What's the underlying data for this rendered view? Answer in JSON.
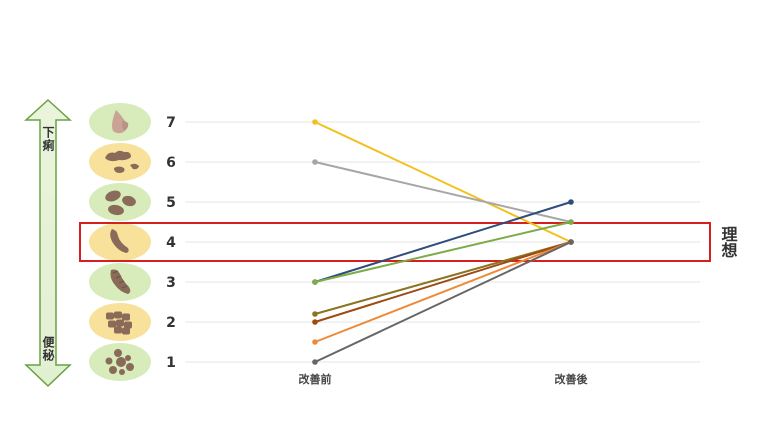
{
  "chart_data": {
    "type": "line",
    "categories": [
      "改善前",
      "改善後"
    ],
    "ylim": [
      1,
      7
    ],
    "y_ticks": [
      "1",
      "2",
      "3",
      "4",
      "5",
      "6",
      "7"
    ],
    "grid": "horizontal",
    "series": [
      {
        "values": [
          7,
          4
        ],
        "color": "#f2c11d"
      },
      {
        "values": [
          6,
          4.5
        ],
        "color": "#a6a6a6"
      },
      {
        "values": [
          3,
          5
        ],
        "color": "#2e4d7b"
      },
      {
        "values": [
          3,
          4.5
        ],
        "color": "#7cac48"
      },
      {
        "values": [
          2.2,
          4
        ],
        "color": "#8a7420"
      },
      {
        "values": [
          2,
          4
        ],
        "color": "#9e4a12"
      },
      {
        "values": [
          1.5,
          4
        ],
        "color": "#ed8a3a"
      },
      {
        "values": [
          1,
          4
        ],
        "color": "#666666"
      }
    ],
    "ideal_band": {
      "value": 4,
      "label": "理想",
      "color": "#d62020"
    },
    "scale_arrow": {
      "top_label": "下痢",
      "bottom_label": "便秘"
    },
    "stool_icons": [
      {
        "level": 7,
        "name": "watery-stool-icon",
        "bg": "#d7ebbb"
      },
      {
        "level": 6,
        "name": "mushy-stool-icon",
        "bg": "#f8e19a"
      },
      {
        "level": 5,
        "name": "soft-blobs-stool-icon",
        "bg": "#d7ebbb"
      },
      {
        "level": 4,
        "name": "ideal-stool-icon",
        "bg": "#f8e19a"
      },
      {
        "level": 3,
        "name": "cracked-stool-icon",
        "bg": "#d7ebbb"
      },
      {
        "level": 2,
        "name": "lumpy-stool-icon",
        "bg": "#f8e19a"
      },
      {
        "level": 1,
        "name": "hard-lumps-stool-icon",
        "bg": "#d7ebbb"
      }
    ]
  }
}
